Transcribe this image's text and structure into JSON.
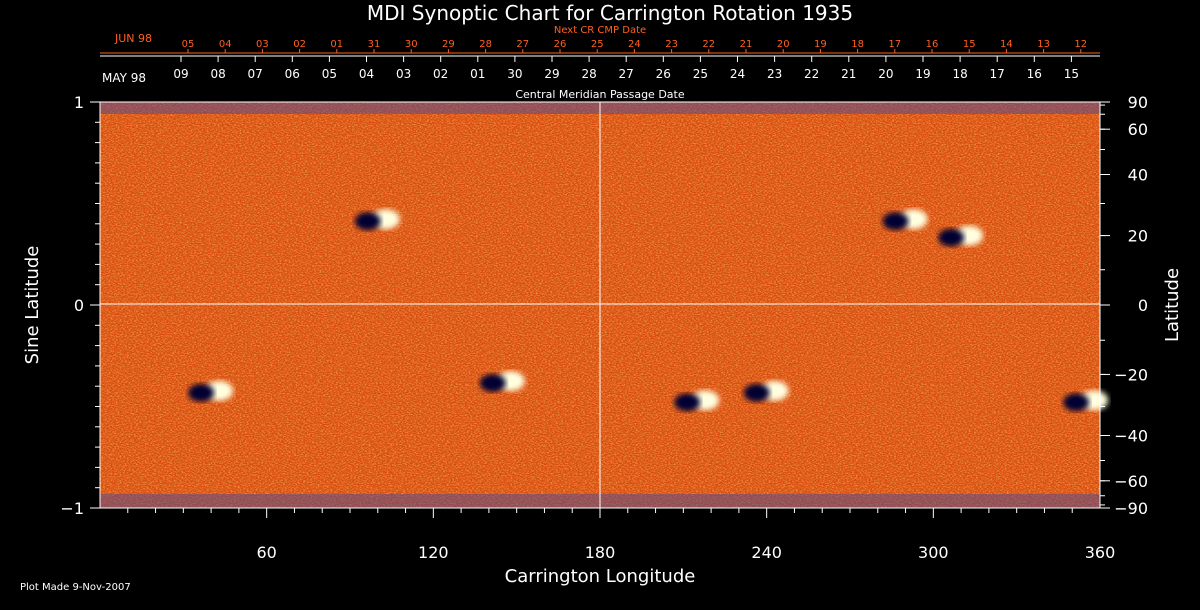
{
  "chart_data": {
    "type": "heatmap",
    "title": "MDI Synoptic Chart for Carrington Rotation 1935",
    "xlabel": "Carrington Longitude",
    "ylabel_left": "Sine Latitude",
    "ylabel_right": "Latitude",
    "xlim": [
      0,
      360
    ],
    "ylim": [
      -1,
      1
    ],
    "x_ticks": [
      60,
      120,
      180,
      240,
      300,
      360
    ],
    "y_ticks_left": [
      {
        "value": 1,
        "label": "1"
      },
      {
        "value": 0,
        "label": "0"
      },
      {
        "value": -1,
        "label": "−1"
      }
    ],
    "y_ticks_right": [
      {
        "deg": 90,
        "label": "90"
      },
      {
        "deg": 60,
        "label": "60"
      },
      {
        "deg": 40,
        "label": "40"
      },
      {
        "deg": 20,
        "label": "20"
      },
      {
        "deg": 0,
        "label": "0"
      },
      {
        "deg": -20,
        "label": "−20"
      },
      {
        "deg": -40,
        "label": "−40"
      },
      {
        "deg": -60,
        "label": "−60"
      },
      {
        "deg": -90,
        "label": "−90"
      }
    ],
    "top_axis_next": {
      "label": "Next CR CMP Date",
      "month_label": "JUN 98",
      "days": [
        "05",
        "04",
        "03",
        "02",
        "01",
        "31",
        "30",
        "29",
        "28",
        "27",
        "26",
        "25",
        "24",
        "23",
        "22",
        "21",
        "20",
        "19",
        "18",
        "17",
        "16",
        "15",
        "14",
        "13",
        "12"
      ]
    },
    "top_axis_current": {
      "label": "Central Meridian Passage Date",
      "month_label": "MAY 98",
      "days": [
        "09",
        "08",
        "07",
        "06",
        "05",
        "04",
        "03",
        "02",
        "01",
        "30",
        "29",
        "28",
        "27",
        "26",
        "25",
        "24",
        "23",
        "22",
        "21",
        "20",
        "19",
        "18",
        "17",
        "16",
        "15"
      ]
    },
    "active_regions": [
      {
        "lon": 100,
        "lat": 25
      },
      {
        "lon": 145,
        "lat": -22
      },
      {
        "lon": 215,
        "lat": -28
      },
      {
        "lon": 310,
        "lat": 20
      },
      {
        "lon": 40,
        "lat": -25
      },
      {
        "lon": 355,
        "lat": -28
      },
      {
        "lon": 240,
        "lat": -25
      },
      {
        "lon": 290,
        "lat": 25
      }
    ],
    "colors": {
      "background": "#d94a10",
      "positive": "#ffffe0",
      "negative": "#000030",
      "next_axis": "#ff6020"
    }
  },
  "footer": {
    "plot_made": "Plot Made  9-Nov-2007"
  }
}
